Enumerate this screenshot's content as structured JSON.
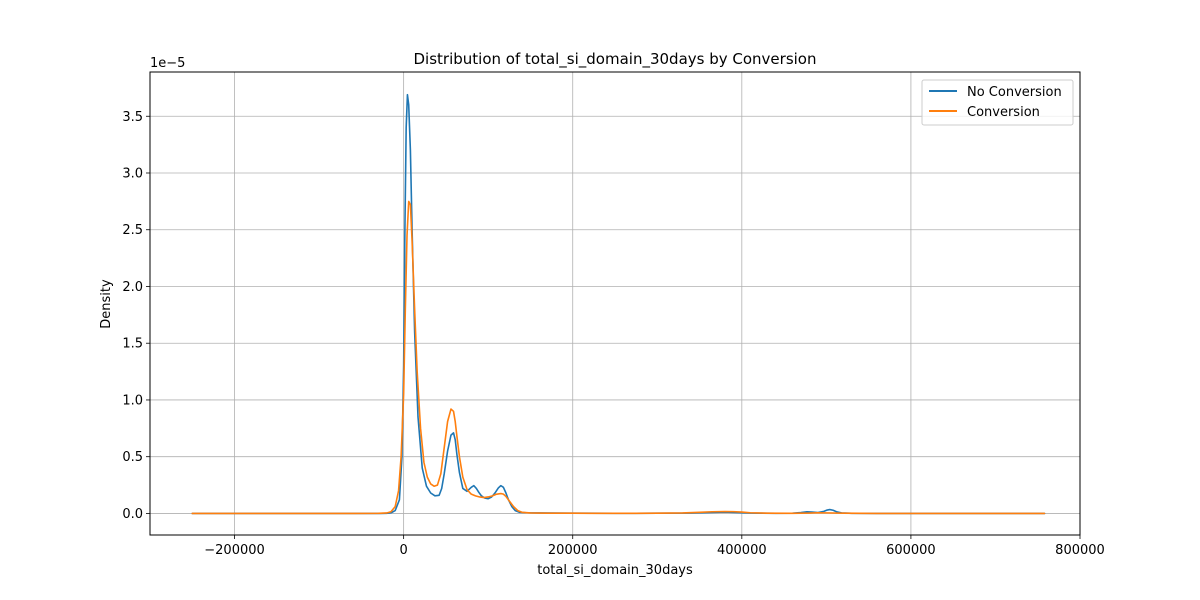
{
  "chart_data": {
    "type": "line",
    "title": "Distribution of total_si_domain_30days by Conversion",
    "xlabel": "total_si_domain_30days",
    "ylabel": "Density",
    "y_offset_label": "1e−5",
    "xlim": [
      -300000,
      800000
    ],
    "ylim": [
      -1.9e-06,
      3.89e-05
    ],
    "x_ticks": [
      -200000,
      0,
      200000,
      400000,
      600000,
      800000
    ],
    "x_tick_labels": [
      "−200000",
      "0",
      "200000",
      "400000",
      "600000",
      "800000"
    ],
    "y_ticks": [
      0,
      5e-06,
      1e-05,
      1.5e-05,
      2e-05,
      2.5e-05,
      3e-05,
      3.5e-05
    ],
    "y_tick_labels": [
      "0.0",
      "0.5",
      "1.0",
      "1.5",
      "2.0",
      "2.5",
      "3.0",
      "3.5"
    ],
    "grid": true,
    "legend_position": "top-right",
    "series": [
      {
        "name": "No Conversion",
        "color": "#1f77b4",
        "x": [
          -250000,
          -60000,
          -30000,
          -20000,
          -15000,
          -10000,
          -5000,
          -2000,
          0,
          1500,
          3000,
          4500,
          6000,
          8000,
          10000,
          13000,
          17000,
          22000,
          27000,
          32000,
          37000,
          42000,
          45000,
          48000,
          52000,
          56000,
          59000,
          61000,
          63000,
          66000,
          70000,
          75000,
          80000,
          83000,
          86000,
          89000,
          92000,
          96000,
          100000,
          104000,
          108000,
          112000,
          115000,
          118000,
          121000,
          124000,
          128000,
          132000,
          137000,
          145000,
          160000,
          180000,
          200000,
          220000,
          250000,
          300000,
          340000,
          360000,
          380000,
          395000,
          410000,
          440000,
          460000,
          470000,
          477000,
          483000,
          490000,
          497000,
          501000,
          504000,
          508000,
          512000,
          518000,
          530000,
          560000,
          600000,
          700000,
          758000
        ],
        "y": [
          0,
          0,
          0,
          1e-08,
          5e-08,
          2.5e-07,
          1.2e-06,
          5e-06,
          1.3e-05,
          2.5e-05,
          3.4e-05,
          3.69e-05,
          3.6e-05,
          3.2e-05,
          2.5e-05,
          1.6e-05,
          8.5e-06,
          4e-06,
          2.4e-06,
          1.8e-06,
          1.55e-06,
          1.6e-06,
          2.2e-06,
          3.5e-06,
          5.5e-06,
          6.9e-06,
          7.1e-06,
          6.5e-06,
          5.2e-06,
          3.6e-06,
          2.2e-06,
          1.95e-06,
          2.3e-06,
          2.45e-06,
          2.2e-06,
          1.85e-06,
          1.55e-06,
          1.35e-06,
          1.3e-06,
          1.45e-06,
          1.8e-06,
          2.25e-06,
          2.45e-06,
          2.3e-06,
          1.8e-06,
          1.2e-06,
          6e-07,
          2.5e-07,
          1e-07,
          6e-08,
          4e-08,
          3e-08,
          2e-08,
          2e-08,
          1e-08,
          2e-08,
          3e-08,
          8e-08,
          1.2e-07,
          8e-08,
          3e-08,
          1e-08,
          2e-08,
          8e-08,
          1.5e-07,
          1.2e-07,
          8e-08,
          1.8e-07,
          3e-07,
          3.4e-07,
          2.8e-07,
          1.5e-07,
          5e-08,
          1e-08,
          0,
          0,
          0,
          0
        ]
      },
      {
        "name": "Conversion",
        "color": "#ff7f0e",
        "x": [
          -250000,
          -60000,
          -30000,
          -20000,
          -15000,
          -10000,
          -6000,
          -3000,
          0,
          2000,
          4000,
          6000,
          8000,
          10000,
          13000,
          16000,
          20000,
          24000,
          28000,
          32000,
          36000,
          40000,
          44000,
          48000,
          52000,
          56000,
          59000,
          61000,
          63000,
          66000,
          70000,
          75000,
          80000,
          85000,
          90000,
          95000,
          100000,
          105000,
          110000,
          115000,
          118000,
          121000,
          125000,
          130000,
          135000,
          140000,
          150000,
          170000,
          200000,
          220000,
          260000,
          300000,
          330000,
          350000,
          365000,
          380000,
          390000,
          400000,
          410000,
          430000,
          460000,
          480000,
          490000,
          500000,
          520000,
          560000,
          600000,
          700000,
          758000
        ],
        "y": [
          0,
          0,
          1e-08,
          4e-08,
          1.5e-07,
          6e-07,
          2e-06,
          5e-06,
          1.05e-05,
          1.8e-05,
          2.45e-05,
          2.75e-05,
          2.72e-05,
          2.4e-05,
          1.8e-05,
          1.25e-05,
          7.5e-06,
          4.5e-06,
          3.2e-06,
          2.6e-06,
          2.4e-06,
          2.5e-06,
          3.5e-06,
          5.8e-06,
          8.1e-06,
          9.2e-06,
          9e-06,
          8.1e-06,
          6.8e-06,
          5e-06,
          3.2e-06,
          2.1e-06,
          1.7e-06,
          1.55e-06,
          1.45e-06,
          1.4e-06,
          1.45e-06,
          1.55e-06,
          1.7e-06,
          1.75e-06,
          1.7e-06,
          1.5e-06,
          1.1e-06,
          6e-07,
          2.5e-07,
          1e-07,
          4e-08,
          2e-08,
          2e-08,
          1e-08,
          1e-08,
          2e-08,
          4e-08,
          1e-07,
          1.5e-07,
          1.7e-07,
          1.6e-07,
          1.2e-07,
          6e-08,
          2e-08,
          1e-08,
          3e-08,
          6e-08,
          5e-08,
          2e-08,
          0,
          0,
          0,
          0
        ]
      }
    ]
  }
}
